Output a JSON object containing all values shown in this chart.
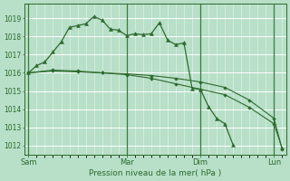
{
  "background_color": "#b8dfc8",
  "grid_color": "#ffffff",
  "line_color": "#2d6a2d",
  "marker_color": "#2d6a2d",
  "xlabel": "Pression niveau de la mer( hPa )",
  "ylim": [
    1011.5,
    1019.8
  ],
  "yticks": [
    1012,
    1013,
    1014,
    1015,
    1016,
    1017,
    1018,
    1019
  ],
  "xtick_labels": [
    "Sam",
    "Mar",
    "Dim",
    "Lun"
  ],
  "xtick_positions": [
    0,
    12,
    21,
    30
  ],
  "total_points": 32,
  "line1_x": [
    0,
    1,
    2,
    3,
    4,
    5,
    6,
    7,
    8,
    9,
    10,
    11,
    12,
    13,
    14,
    15,
    16,
    17,
    18,
    19,
    20,
    21,
    22,
    23,
    24,
    25,
    26,
    27,
    28,
    29,
    30,
    31
  ],
  "line1_y": [
    1016.0,
    1016.4,
    1016.6,
    1017.15,
    1017.7,
    1018.5,
    1018.6,
    1018.7,
    1019.1,
    1018.9,
    1018.4,
    1018.35,
    1018.05,
    1018.15,
    1018.1,
    1018.15,
    1018.75,
    1017.8,
    1017.55,
    1017.65,
    1015.15,
    1015.1,
    1014.15,
    1013.5,
    1013.2,
    1012.05,
    -1,
    -1,
    -1,
    -1,
    -1,
    -1
  ],
  "line2_x": [
    0,
    3,
    6,
    9,
    12,
    15,
    18,
    21,
    24,
    27,
    30,
    31
  ],
  "line2_y": [
    1016.0,
    1016.1,
    1016.05,
    1016.0,
    1015.95,
    1015.85,
    1015.7,
    1015.5,
    1015.2,
    1014.5,
    1013.5,
    1011.8
  ],
  "line3_x": [
    0,
    3,
    6,
    9,
    12,
    15,
    18,
    21,
    24,
    27,
    30,
    31
  ],
  "line3_y": [
    1016.0,
    1016.15,
    1016.1,
    1016.0,
    1015.9,
    1015.7,
    1015.4,
    1015.1,
    1014.8,
    1014.1,
    1013.2,
    1011.85
  ],
  "vline_positions": [
    0,
    12,
    21,
    30
  ],
  "figsize": [
    3.2,
    2.0
  ],
  "dpi": 100
}
